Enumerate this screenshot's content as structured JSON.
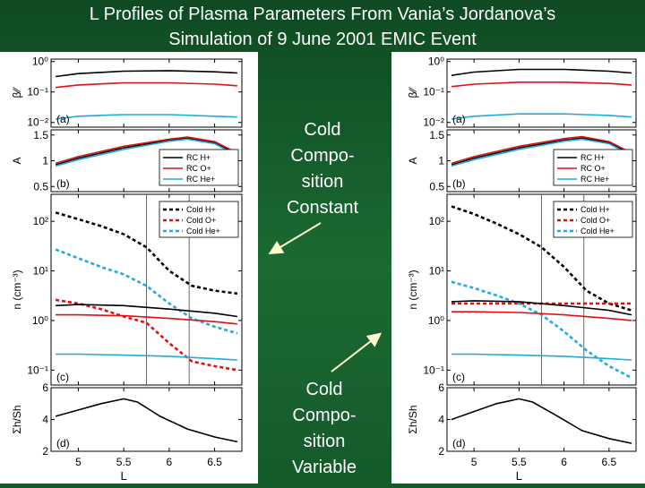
{
  "slide": {
    "title_line1": "L Profiles of Plasma Parameters From Vania’s Jordanova’s",
    "title_line2": "Simulation of 9 June 2001 EMIC Event",
    "label_constant": [
      "Cold",
      "Compo-",
      "sition",
      "Constant"
    ],
    "label_variable": [
      "Cold",
      "Compo-",
      "sition",
      "Variable"
    ],
    "colors": {
      "background": "#145a2a",
      "text": "#ffffff",
      "black": "#000000",
      "red": "#dd1111",
      "cyan": "#22aadd"
    }
  },
  "chart_data": [
    {
      "type": "line",
      "name": "left-figure-constant",
      "xlabel": "L",
      "xlim": [
        4.7,
        6.8
      ],
      "xticks": [
        "5",
        "5.5",
        "6",
        "6.5"
      ],
      "vlines": [
        5.75,
        6.22
      ],
      "panels": [
        {
          "tag": "(a)",
          "ylabel": "β⁄⁄",
          "scale": "log",
          "ylim": [
            0.007,
            1.2
          ],
          "yticks": [
            "10⁰",
            "10⁻¹",
            "10⁻²"
          ],
          "ytick_values": [
            1,
            0.1,
            0.01
          ],
          "series": [
            {
              "color": "black",
              "dash": false,
              "x": [
                4.75,
                5.0,
                5.5,
                6.0,
                6.5,
                6.75
              ],
              "y": [
                0.32,
                0.4,
                0.48,
                0.5,
                0.46,
                0.42
              ]
            },
            {
              "color": "red",
              "dash": false,
              "x": [
                4.75,
                5.0,
                5.5,
                6.0,
                6.5,
                6.75
              ],
              "y": [
                0.14,
                0.17,
                0.2,
                0.2,
                0.18,
                0.16
              ]
            },
            {
              "color": "cyan",
              "dash": false,
              "x": [
                4.75,
                5.0,
                5.5,
                6.0,
                6.5,
                6.75
              ],
              "y": [
                0.013,
                0.016,
                0.018,
                0.018,
                0.016,
                0.015
              ]
            }
          ]
        },
        {
          "tag": "(b)",
          "ylabel": "A",
          "scale": "linear",
          "ylim": [
            0.4,
            1.6
          ],
          "yticks": [
            "1.5",
            "1",
            "0.5"
          ],
          "ytick_values": [
            1.5,
            1,
            0.5
          ],
          "legend": [
            "RC H+",
            "RC O+",
            "RC He+"
          ],
          "legend_colors": [
            "black",
            "red",
            "cyan"
          ],
          "series": [
            {
              "name": "RC H+",
              "color": "black",
              "dash": false,
              "x": [
                4.75,
                5.0,
                5.5,
                6.0,
                6.2,
                6.5,
                6.75
              ],
              "y": [
                0.92,
                1.05,
                1.25,
                1.4,
                1.44,
                1.35,
                1.12
              ]
            },
            {
              "name": "RC O+",
              "color": "red",
              "dash": false,
              "x": [
                4.75,
                5.0,
                5.5,
                6.0,
                6.2,
                6.5,
                6.75
              ],
              "y": [
                0.95,
                1.08,
                1.28,
                1.42,
                1.46,
                1.37,
                1.15
              ]
            },
            {
              "name": "RC He+",
              "color": "cyan",
              "dash": false,
              "x": [
                4.75,
                5.0,
                5.5,
                6.0,
                6.2,
                6.5,
                6.75
              ],
              "y": [
                0.9,
                1.02,
                1.22,
                1.38,
                1.42,
                1.33,
                1.1
              ]
            }
          ]
        },
        {
          "tag": "(c)",
          "ylabel": "n (cm⁻³)",
          "scale": "log",
          "ylim": [
            0.05,
            350
          ],
          "yticks": [
            "10²",
            "10¹",
            "10⁰",
            "10⁻¹"
          ],
          "ytick_values": [
            100,
            10,
            1,
            0.1
          ],
          "legend": [
            "Cold H+",
            "Cold O+",
            "Cold He+"
          ],
          "legend_colors": [
            "black",
            "red",
            "cyan"
          ],
          "series": [
            {
              "name": "Cold H+",
              "color": "black",
              "dash": true,
              "x": [
                4.75,
                5.0,
                5.25,
                5.5,
                5.75,
                6.0,
                6.25,
                6.5,
                6.75
              ],
              "y": [
                150,
                110,
                80,
                55,
                30,
                10,
                5,
                4,
                3.5
              ]
            },
            {
              "name": "Cold O+",
              "color": "red",
              "dash": true,
              "x": [
                4.75,
                5.0,
                5.25,
                5.5,
                5.75,
                6.0,
                6.25,
                6.5,
                6.75
              ],
              "y": [
                2.6,
                2.2,
                1.7,
                1.2,
                0.9,
                0.35,
                0.15,
                0.12,
                0.1
              ]
            },
            {
              "name": "Cold He+",
              "color": "cyan",
              "dash": true,
              "x": [
                4.75,
                5.0,
                5.25,
                5.5,
                5.75,
                6.0,
                6.25,
                6.5,
                6.75
              ],
              "y": [
                27,
                18,
                12,
                8.5,
                5,
                2.2,
                1.1,
                0.75,
                0.55
              ]
            },
            {
              "color": "black",
              "dash": false,
              "x": [
                4.75,
                5.0,
                5.5,
                6.0,
                6.5,
                6.75
              ],
              "y": [
                2.0,
                2.1,
                2.0,
                1.7,
                1.4,
                1.2
              ]
            },
            {
              "color": "red",
              "dash": false,
              "x": [
                4.75,
                5.0,
                5.5,
                6.0,
                6.5,
                6.75
              ],
              "y": [
                1.3,
                1.3,
                1.25,
                1.1,
                0.95,
                0.85
              ]
            },
            {
              "color": "cyan",
              "dash": false,
              "x": [
                4.75,
                5.0,
                5.5,
                6.0,
                6.5,
                6.75
              ],
              "y": [
                0.21,
                0.21,
                0.2,
                0.19,
                0.17,
                0.16
              ]
            }
          ]
        },
        {
          "tag": "(d)",
          "ylabel": "Σh/Sh",
          "scale": "linear",
          "ylim": [
            2,
            6
          ],
          "yticks": [
            "6",
            "4",
            "2"
          ],
          "ytick_values": [
            6,
            4,
            2
          ],
          "series": [
            {
              "color": "black",
              "dash": false,
              "x": [
                4.75,
                5.0,
                5.25,
                5.5,
                5.65,
                5.9,
                6.2,
                6.5,
                6.75
              ],
              "y": [
                4.2,
                4.6,
                5.0,
                5.3,
                5.1,
                4.2,
                3.4,
                2.9,
                2.6
              ]
            }
          ]
        }
      ]
    },
    {
      "type": "line",
      "name": "right-figure-variable",
      "xlabel": "L",
      "xlim": [
        4.7,
        6.8
      ],
      "xticks": [
        "5",
        "5.5",
        "6",
        "6.5"
      ],
      "vlines": [
        5.75,
        6.22
      ],
      "panels": [
        {
          "tag": "(a)",
          "ylabel": "β⁄⁄",
          "scale": "log",
          "ylim": [
            0.007,
            1.2
          ],
          "yticks": [
            "10⁰",
            "10⁻¹",
            "10⁻²"
          ],
          "ytick_values": [
            1,
            0.1,
            0.01
          ],
          "series": [
            {
              "color": "black",
              "dash": false,
              "x": [
                4.75,
                5.0,
                5.5,
                6.0,
                6.5,
                6.75
              ],
              "y": [
                0.35,
                0.45,
                0.55,
                0.55,
                0.48,
                0.42
              ]
            },
            {
              "color": "red",
              "dash": false,
              "x": [
                4.75,
                5.0,
                5.5,
                6.0,
                6.5,
                6.75
              ],
              "y": [
                0.15,
                0.18,
                0.21,
                0.21,
                0.19,
                0.17
              ]
            },
            {
              "color": "cyan",
              "dash": false,
              "x": [
                4.75,
                5.0,
                5.5,
                6.0,
                6.5,
                6.75
              ],
              "y": [
                0.013,
                0.016,
                0.019,
                0.019,
                0.017,
                0.015
              ]
            }
          ]
        },
        {
          "tag": "(b)",
          "ylabel": "A",
          "scale": "linear",
          "ylim": [
            0.4,
            1.6
          ],
          "yticks": [
            "1.5",
            "1",
            "0.5"
          ],
          "ytick_values": [
            1.5,
            1,
            0.5
          ],
          "legend": [
            "RC H+",
            "RC O+",
            "RC He+"
          ],
          "legend_colors": [
            "black",
            "red",
            "cyan"
          ],
          "series": [
            {
              "name": "RC H+",
              "color": "black",
              "dash": false,
              "x": [
                4.75,
                5.0,
                5.5,
                6.0,
                6.2,
                6.5,
                6.75
              ],
              "y": [
                0.92,
                1.05,
                1.25,
                1.4,
                1.44,
                1.35,
                1.12
              ]
            },
            {
              "name": "RC O+",
              "color": "red",
              "dash": false,
              "x": [
                4.75,
                5.0,
                5.5,
                6.0,
                6.2,
                6.5,
                6.75
              ],
              "y": [
                0.95,
                1.08,
                1.28,
                1.43,
                1.47,
                1.37,
                1.15
              ]
            },
            {
              "name": "RC He+",
              "color": "cyan",
              "dash": false,
              "x": [
                4.75,
                5.0,
                5.5,
                6.0,
                6.2,
                6.5,
                6.75
              ],
              "y": [
                0.9,
                1.02,
                1.22,
                1.38,
                1.42,
                1.33,
                1.1
              ]
            }
          ]
        },
        {
          "tag": "(c)",
          "ylabel": "n (cm⁻³)",
          "scale": "log",
          "ylim": [
            0.05,
            350
          ],
          "yticks": [
            "10²",
            "10¹",
            "10⁰",
            "10⁻¹"
          ],
          "ytick_values": [
            100,
            10,
            1,
            0.1
          ],
          "legend": [
            "Cold H+",
            "Cold O+",
            "Cold He+"
          ],
          "legend_colors": [
            "black",
            "red",
            "cyan"
          ],
          "series": [
            {
              "name": "Cold H+",
              "color": "black",
              "dash": true,
              "x": [
                4.75,
                5.0,
                5.25,
                5.5,
                5.75,
                6.0,
                6.25,
                6.5,
                6.75
              ],
              "y": [
                200,
                140,
                90,
                55,
                30,
                12,
                4,
                2.2,
                1.6
              ]
            },
            {
              "name": "Cold O+",
              "color": "red",
              "dash": true,
              "x": [
                4.75,
                5.0,
                5.5,
                6.0,
                6.5,
                6.75
              ],
              "y": [
                2.2,
                2.2,
                2.2,
                2.2,
                2.2,
                2.2
              ]
            },
            {
              "name": "Cold He+",
              "color": "cyan",
              "dash": true,
              "x": [
                4.75,
                5.0,
                5.25,
                5.5,
                5.75,
                6.0,
                6.25,
                6.5,
                6.75
              ],
              "y": [
                6,
                4.5,
                3.2,
                2.2,
                1.3,
                0.6,
                0.25,
                0.12,
                0.07
              ]
            },
            {
              "color": "black",
              "dash": false,
              "x": [
                4.75,
                5.0,
                5.5,
                6.0,
                6.5,
                6.75
              ],
              "y": [
                2.4,
                2.5,
                2.4,
                2.0,
                1.6,
                1.3
              ]
            },
            {
              "color": "red",
              "dash": false,
              "x": [
                4.75,
                5.0,
                5.5,
                6.0,
                6.5,
                6.75
              ],
              "y": [
                1.5,
                1.5,
                1.45,
                1.3,
                1.1,
                1.0
              ]
            },
            {
              "color": "cyan",
              "dash": false,
              "x": [
                4.75,
                5.0,
                5.5,
                6.0,
                6.5,
                6.75
              ],
              "y": [
                0.21,
                0.21,
                0.2,
                0.19,
                0.17,
                0.16
              ]
            }
          ]
        },
        {
          "tag": "(d)",
          "ylabel": "Σh/Sh",
          "scale": "linear",
          "ylim": [
            2,
            6
          ],
          "yticks": [
            "6",
            "4",
            "2"
          ],
          "ytick_values": [
            6,
            4,
            2
          ],
          "series": [
            {
              "color": "black",
              "dash": false,
              "x": [
                4.75,
                5.0,
                5.25,
                5.5,
                5.65,
                5.9,
                6.2,
                6.5,
                6.75
              ],
              "y": [
                4.0,
                4.5,
                5.0,
                5.3,
                5.1,
                4.3,
                3.3,
                2.8,
                2.5
              ]
            }
          ]
        }
      ]
    }
  ]
}
